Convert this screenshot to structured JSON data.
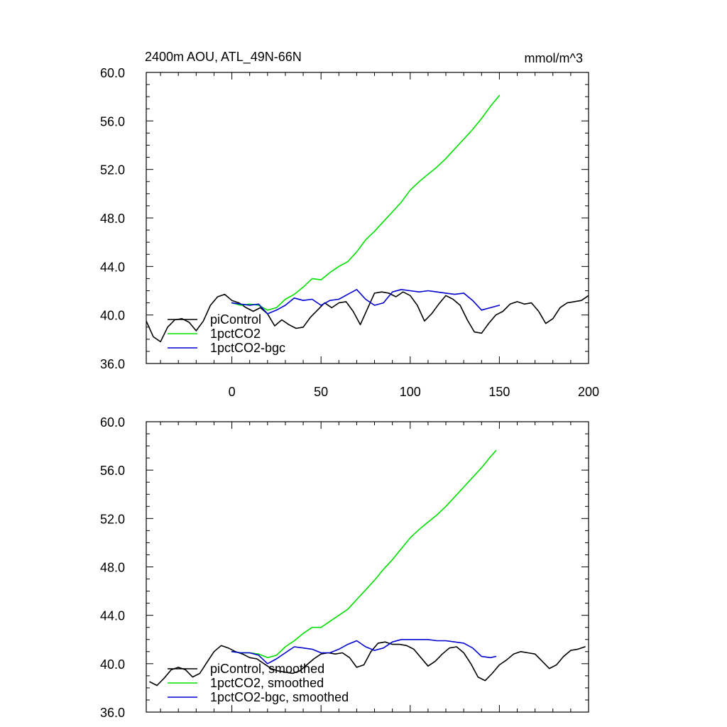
{
  "chart_data": [
    {
      "type": "line",
      "title": "2400m AOU, ATL_49N-66N",
      "units": "mmol/m^3",
      "ylim": [
        36,
        60
      ],
      "yticks": [
        36.0,
        40.0,
        44.0,
        48.0,
        52.0,
        56.0,
        60.0
      ],
      "ytick_labels": [
        "36.0",
        "40.0",
        "44.0",
        "48.0",
        "52.0",
        "56.0",
        "60.0"
      ],
      "xlim": [
        -48,
        200
      ],
      "xticks": [
        0,
        50,
        100,
        150,
        200
      ],
      "xtick_labels": [
        "0",
        "50",
        "100",
        "150",
        "200"
      ],
      "grid": false,
      "legend_position": "lower-left",
      "series": [
        {
          "name": "piControl",
          "color": "#000000",
          "x": [
            -48,
            -44,
            -40,
            -36,
            -32,
            -28,
            -24,
            -20,
            -16,
            -12,
            -8,
            -4,
            0,
            4,
            8,
            12,
            16,
            20,
            24,
            28,
            32,
            36,
            40,
            44,
            48,
            52,
            56,
            60,
            64,
            68,
            72,
            76,
            80,
            84,
            88,
            92,
            96,
            100,
            104,
            108,
            112,
            116,
            120,
            124,
            128,
            132,
            136,
            140,
            144,
            148,
            152,
            156,
            160,
            164,
            168,
            172,
            176,
            180,
            184,
            188,
            192,
            196,
            200
          ],
          "y": [
            39.5,
            38.2,
            37.8,
            39.0,
            39.6,
            39.7,
            39.4,
            38.7,
            39.5,
            40.8,
            41.5,
            41.7,
            41.2,
            41.0,
            40.6,
            40.3,
            40.6,
            40.1,
            39.1,
            39.6,
            39.2,
            38.9,
            39.0,
            39.8,
            40.4,
            41.0,
            40.6,
            41.0,
            41.1,
            40.3,
            39.2,
            40.5,
            41.8,
            41.9,
            41.8,
            41.5,
            41.9,
            41.6,
            40.8,
            39.5,
            40.1,
            40.9,
            41.6,
            41.3,
            40.8,
            39.6,
            38.6,
            38.5,
            39.3,
            40.0,
            40.3,
            40.9,
            41.1,
            40.9,
            41.0,
            40.3,
            39.3,
            39.7,
            40.6,
            41.0,
            41.1,
            41.2,
            41.6
          ]
        },
        {
          "name": "1pctCO2",
          "color": "#00e000",
          "x": [
            0,
            5,
            10,
            15,
            20,
            25,
            30,
            35,
            40,
            45,
            50,
            55,
            60,
            65,
            70,
            75,
            80,
            85,
            90,
            95,
            100,
            105,
            110,
            115,
            120,
            125,
            130,
            135,
            140,
            145,
            150
          ],
          "y": [
            41.0,
            40.8,
            40.9,
            40.8,
            40.4,
            40.6,
            41.3,
            41.7,
            42.3,
            43.0,
            42.9,
            43.5,
            44.0,
            44.4,
            45.2,
            46.2,
            46.9,
            47.7,
            48.5,
            49.3,
            50.3,
            51.0,
            51.6,
            52.2,
            52.9,
            53.7,
            54.5,
            55.3,
            56.2,
            57.2,
            58.1
          ]
        },
        {
          "name": "1pctCO2-bgc",
          "color": "#0000d0",
          "x": [
            0,
            5,
            10,
            15,
            20,
            25,
            30,
            35,
            40,
            45,
            50,
            55,
            60,
            65,
            70,
            75,
            80,
            85,
            90,
            95,
            100,
            105,
            110,
            115,
            120,
            125,
            130,
            135,
            140,
            145,
            150
          ],
          "y": [
            41.0,
            40.9,
            40.8,
            40.9,
            40.1,
            40.4,
            40.8,
            41.4,
            41.2,
            41.3,
            40.8,
            41.2,
            41.3,
            41.7,
            42.1,
            41.3,
            40.8,
            41.0,
            41.9,
            42.1,
            42.0,
            41.9,
            42.0,
            41.9,
            41.8,
            41.7,
            41.8,
            41.2,
            40.4,
            40.6,
            40.8
          ]
        }
      ]
    },
    {
      "type": "line",
      "ylim": [
        36,
        60
      ],
      "yticks": [
        36.0,
        40.0,
        44.0,
        48.0,
        52.0,
        56.0,
        60.0
      ],
      "ytick_labels": [
        "36.0",
        "40.0",
        "44.0",
        "48.0",
        "52.0",
        "56.0",
        "60.0"
      ],
      "xlim": [
        -48,
        200
      ],
      "grid": false,
      "legend_position": "lower-left",
      "series": [
        {
          "name": "piControl, smoothed",
          "color": "#000000",
          "x": [
            -46,
            -42,
            -38,
            -34,
            -30,
            -26,
            -22,
            -18,
            -14,
            -10,
            -6,
            -2,
            2,
            6,
            10,
            14,
            18,
            22,
            26,
            30,
            34,
            38,
            42,
            46,
            50,
            54,
            58,
            62,
            66,
            70,
            74,
            78,
            82,
            86,
            90,
            94,
            98,
            102,
            106,
            110,
            114,
            118,
            122,
            126,
            130,
            134,
            138,
            142,
            146,
            150,
            154,
            158,
            162,
            166,
            170,
            174,
            178,
            182,
            186,
            190,
            194,
            198
          ],
          "y": [
            38.5,
            38.2,
            38.8,
            39.5,
            39.7,
            39.5,
            38.9,
            39.2,
            40.1,
            41.0,
            41.5,
            41.3,
            41.0,
            40.8,
            40.5,
            40.4,
            40.0,
            39.6,
            39.4,
            39.3,
            39.2,
            39.4,
            39.9,
            40.4,
            40.8,
            40.9,
            40.8,
            40.9,
            40.5,
            39.7,
            39.9,
            41.0,
            41.7,
            41.8,
            41.6,
            41.6,
            41.5,
            41.2,
            40.5,
            39.8,
            40.2,
            40.8,
            41.3,
            41.4,
            40.9,
            40.0,
            38.9,
            38.6,
            39.2,
            39.9,
            40.3,
            40.8,
            41.0,
            40.9,
            40.8,
            40.2,
            39.6,
            39.9,
            40.6,
            41.1,
            41.2,
            41.4
          ]
        },
        {
          "name": "1pctCO2, smoothed",
          "color": "#00e000",
          "x": [
            0,
            5,
            10,
            15,
            20,
            25,
            30,
            35,
            40,
            45,
            50,
            55,
            60,
            65,
            70,
            75,
            80,
            85,
            90,
            95,
            100,
            105,
            110,
            115,
            120,
            125,
            130,
            135,
            140,
            145,
            148
          ],
          "y": [
            41.0,
            40.9,
            40.9,
            40.8,
            40.5,
            40.7,
            41.4,
            41.9,
            42.5,
            43.0,
            43.0,
            43.5,
            44.0,
            44.5,
            45.3,
            46.1,
            46.9,
            47.8,
            48.6,
            49.5,
            50.4,
            51.1,
            51.7,
            52.3,
            53.0,
            53.8,
            54.6,
            55.4,
            56.2,
            57.1,
            57.6
          ]
        },
        {
          "name": "1pctCO2-bgc, smoothed",
          "color": "#0000d0",
          "x": [
            0,
            5,
            10,
            15,
            20,
            25,
            30,
            35,
            40,
            45,
            50,
            55,
            60,
            65,
            70,
            75,
            80,
            85,
            90,
            95,
            100,
            105,
            110,
            115,
            120,
            125,
            130,
            135,
            140,
            145,
            148
          ],
          "y": [
            41.0,
            40.9,
            40.9,
            40.7,
            40.0,
            40.4,
            40.9,
            41.4,
            41.3,
            41.2,
            40.9,
            40.9,
            41.2,
            41.6,
            41.9,
            41.4,
            41.1,
            41.3,
            41.8,
            42.0,
            42.0,
            42.0,
            42.0,
            41.9,
            41.9,
            41.8,
            41.7,
            41.3,
            40.6,
            40.5,
            40.6
          ]
        }
      ]
    }
  ]
}
